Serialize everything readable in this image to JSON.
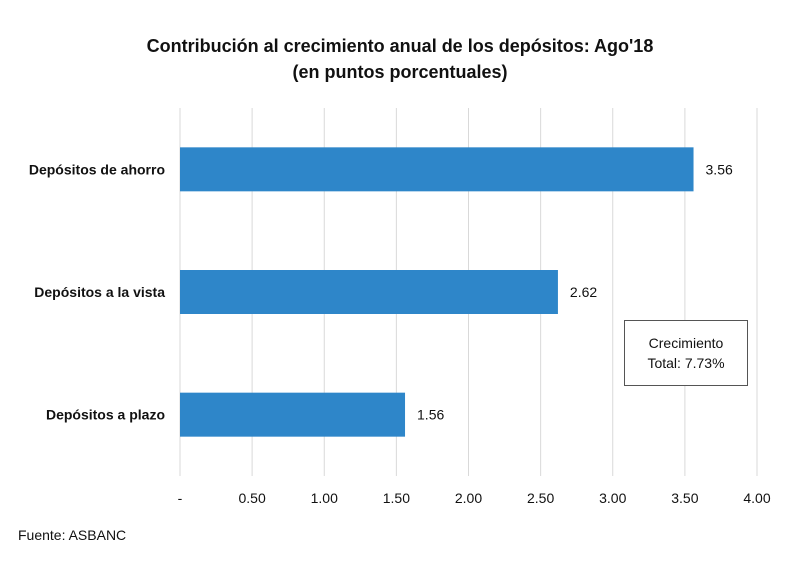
{
  "chart_data": {
    "type": "bar",
    "orientation": "horizontal",
    "title": "Contribución al crecimiento anual de los depósitos: Ago'18",
    "subtitle": "(en puntos porcentuales)",
    "categories": [
      "Depósitos de ahorro",
      "Depósitos a la vista",
      "Depósitos a plazo"
    ],
    "values": [
      3.56,
      2.62,
      1.56
    ],
    "data_labels": [
      "3.56",
      "2.62",
      "1.56"
    ],
    "xlim": [
      0,
      4.0
    ],
    "x_ticks": [
      0,
      0.5,
      1.0,
      1.5,
      2.0,
      2.5,
      3.0,
      3.5,
      4.0
    ],
    "x_tick_labels": [
      "-",
      "0.50",
      "1.00",
      "1.50",
      "2.00",
      "2.50",
      "3.00",
      "3.50",
      "4.00"
    ],
    "grid": "vertical",
    "bar_color": "#2E86C9",
    "grid_color": "#D9D9D9",
    "annotation": {
      "line1": "Crecimiento",
      "line2": "Total: 7.73%"
    }
  },
  "source": "Fuente: ASBANC"
}
